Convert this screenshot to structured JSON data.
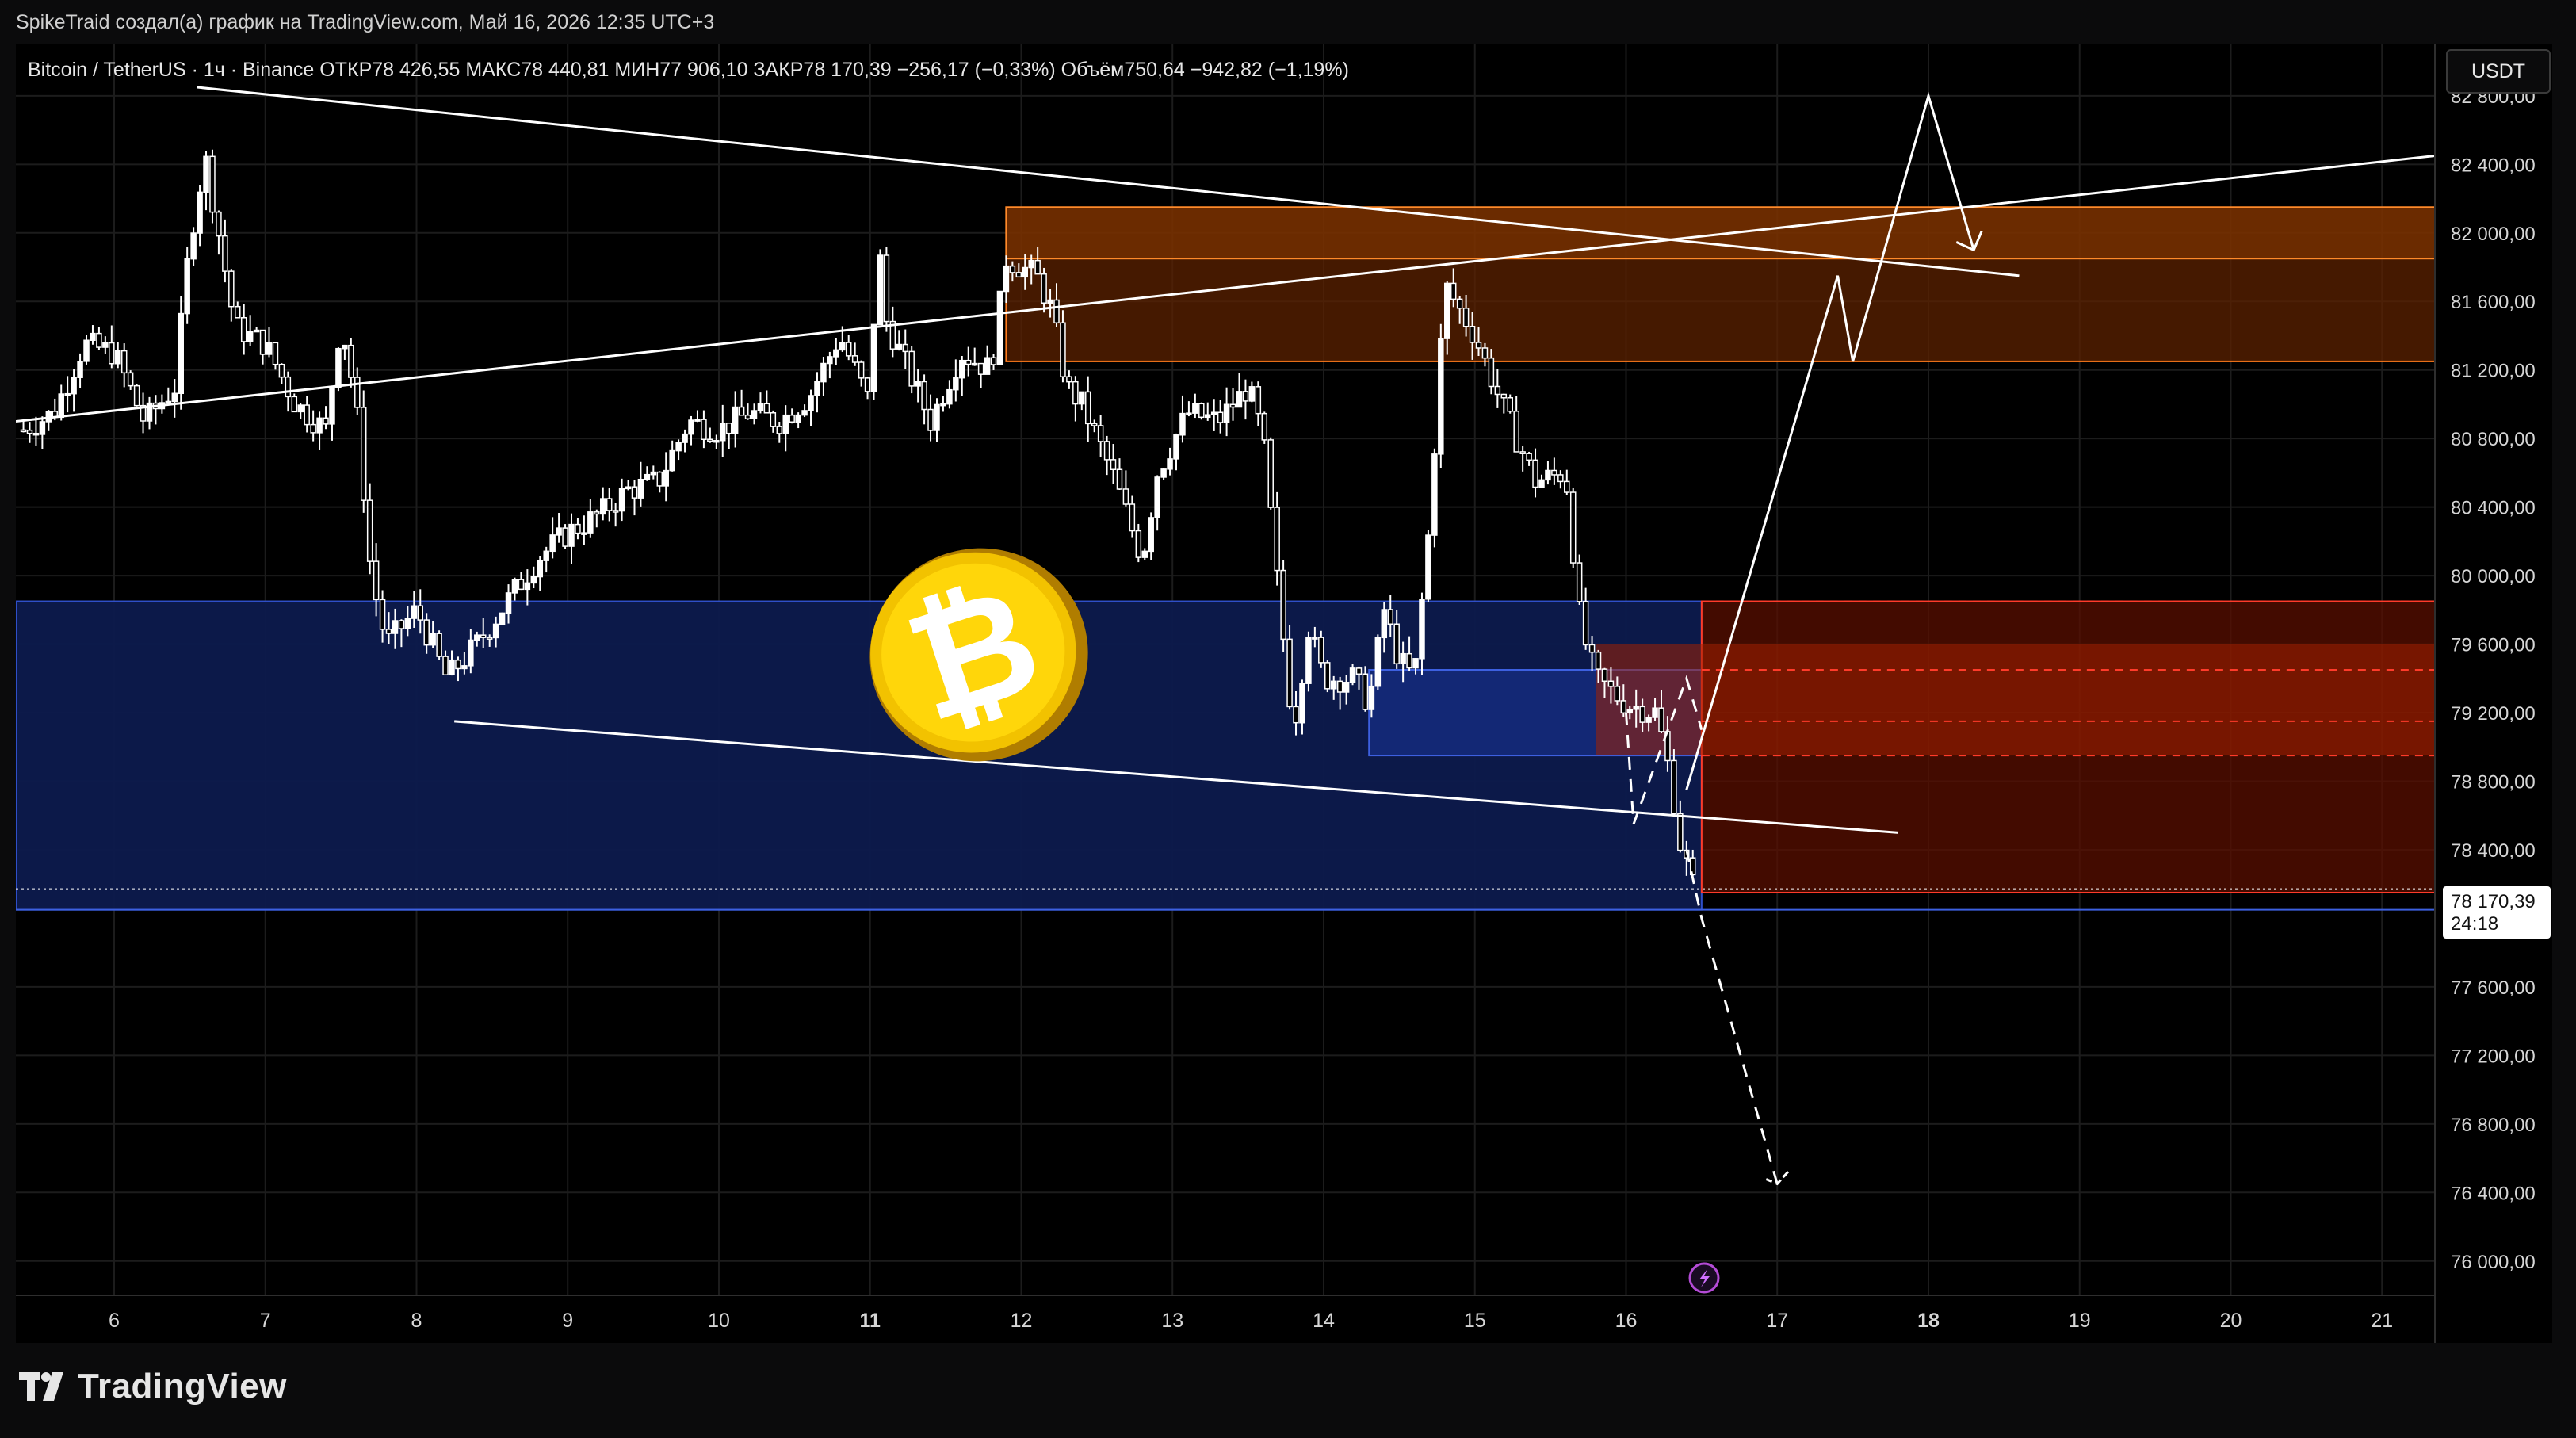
{
  "attribution": "SpikeTraid создал(а) график на TradingView.com, Май 16, 2026 12:35 UTC+3",
  "legend": "Bitcoin / TetherUS · 1ч · Binance  ОТКР78 426,55  МАКС78 440,81  МИН77 906,10  ЗАКР78 170,39  −256,17 (−0,33%)  Объём750,64  −942,82 (−1,19%)",
  "currency_button": "USDT",
  "price_badge": {
    "price": "78 170,39",
    "countdown": "24:18"
  },
  "brand": "TradingView",
  "colors": {
    "background": "#000000",
    "candle": "#ffffff",
    "demand_zone": "#0d1a4d",
    "supply_zone": "#5c2200",
    "resistance_zone": "#5a0f00",
    "trendline": "#ffffff"
  },
  "icons": {
    "lightning": "lightning-icon",
    "bitcoin": "bitcoin-coin-icon",
    "logo": "tradingview-logo-icon"
  },
  "chart_data": {
    "type": "candlestick",
    "symbol": "Bitcoin / TetherUS",
    "interval": "1ч",
    "exchange": "Binance",
    "ylim": [
      75800,
      83100
    ],
    "y_ticks": [
      "82 800,00",
      "82 400,00",
      "82 000,00",
      "81 600,00",
      "81 200,00",
      "80 800,00",
      "80 400,00",
      "80 000,00",
      "79 600,00",
      "79 200,00",
      "78 800,00",
      "78 400,00",
      "77 600,00",
      "77 200,00",
      "76 800,00",
      "76 400,00",
      "76 000,00"
    ],
    "y_tick_values": [
      82800,
      82400,
      82000,
      81600,
      81200,
      80800,
      80400,
      80000,
      79600,
      79200,
      78800,
      78400,
      77600,
      77200,
      76800,
      76400,
      76000
    ],
    "x_ticks": [
      "6",
      "7",
      "8",
      "9",
      "10",
      "11",
      "12",
      "13",
      "14",
      "15",
      "16",
      "17",
      "18",
      "19",
      "20",
      "21"
    ],
    "x_tick_values": [
      6,
      7,
      8,
      9,
      10,
      11,
      12,
      13,
      14,
      15,
      16,
      17,
      18,
      19,
      20,
      21
    ],
    "x_bold_ticks": [
      "11",
      "18"
    ],
    "xlim": [
      5.35,
      21.35
    ],
    "last_price": 78170.39,
    "close_path": [
      [
        5.4,
        80850
      ],
      [
        5.6,
        80950
      ],
      [
        5.8,
        81350
      ],
      [
        6.0,
        81300
      ],
      [
        6.2,
        80900
      ],
      [
        6.4,
        81100
      ],
      [
        6.5,
        81950
      ],
      [
        6.6,
        82450
      ],
      [
        6.8,
        81450
      ],
      [
        7.0,
        81350
      ],
      [
        7.2,
        81000
      ],
      [
        7.4,
        80850
      ],
      [
        7.5,
        81500
      ],
      [
        7.6,
        81000
      ],
      [
        7.7,
        80000
      ],
      [
        7.8,
        79600
      ],
      [
        8.0,
        79800
      ],
      [
        8.2,
        79400
      ],
      [
        8.4,
        79600
      ],
      [
        8.6,
        79850
      ],
      [
        8.8,
        80100
      ],
      [
        9.0,
        80250
      ],
      [
        9.2,
        80350
      ],
      [
        9.4,
        80500
      ],
      [
        9.6,
        80550
      ],
      [
        9.8,
        80900
      ],
      [
        10.0,
        80850
      ],
      [
        10.2,
        80950
      ],
      [
        10.4,
        80900
      ],
      [
        10.6,
        81050
      ],
      [
        10.8,
        81400
      ],
      [
        11.0,
        81000
      ],
      [
        11.05,
        82000
      ],
      [
        11.1,
        81500
      ],
      [
        11.2,
        81300
      ],
      [
        11.4,
        80900
      ],
      [
        11.6,
        81300
      ],
      [
        11.8,
        81200
      ],
      [
        11.9,
        81850
      ],
      [
        12.1,
        81750
      ],
      [
        12.2,
        81550
      ],
      [
        12.3,
        81100
      ],
      [
        12.4,
        81000
      ],
      [
        12.6,
        80600
      ],
      [
        12.8,
        80100
      ],
      [
        12.9,
        80600
      ],
      [
        13.1,
        80950
      ],
      [
        13.3,
        80900
      ],
      [
        13.5,
        81100
      ],
      [
        13.6,
        80800
      ],
      [
        13.7,
        79900
      ],
      [
        13.8,
        79100
      ],
      [
        13.9,
        79700
      ],
      [
        14.0,
        79400
      ],
      [
        14.2,
        79400
      ],
      [
        14.3,
        79250
      ],
      [
        14.4,
        79800
      ],
      [
        14.5,
        79500
      ],
      [
        14.6,
        79400
      ],
      [
        14.7,
        80300
      ],
      [
        14.8,
        81700
      ],
      [
        15.0,
        81400
      ],
      [
        15.2,
        80950
      ],
      [
        15.4,
        80550
      ],
      [
        15.6,
        80600
      ],
      [
        15.7,
        79700
      ],
      [
        15.8,
        79400
      ],
      [
        16.0,
        79250
      ],
      [
        16.2,
        79200
      ],
      [
        16.3,
        78800
      ],
      [
        16.35,
        78460
      ],
      [
        16.45,
        78170
      ]
    ],
    "zones": [
      {
        "name": "demand-zone-large",
        "x": [
          5.35,
          16.5
        ],
        "y": [
          78050,
          79850
        ]
      },
      {
        "name": "demand-zone-inner",
        "x": [
          14.3,
          16.5
        ],
        "y": [
          78950,
          79450
        ]
      },
      {
        "name": "supply-zone",
        "x": [
          11.9,
          21.35
        ],
        "y": [
          81250,
          82150
        ]
      },
      {
        "name": "resistance-zone",
        "x": [
          16.5,
          21.35
        ],
        "y": [
          78150,
          79850
        ]
      }
    ],
    "trendlines": [
      {
        "name": "upper-trendline",
        "points": [
          [
            6.55,
            82850
          ],
          [
            18.6,
            81750
          ]
        ]
      },
      {
        "name": "rising-trendline",
        "points": [
          [
            5.35,
            80900
          ],
          [
            21.35,
            82450
          ]
        ]
      },
      {
        "name": "lower-trendline",
        "points": [
          [
            8.25,
            79150
          ],
          [
            17.8,
            78500
          ]
        ]
      }
    ],
    "projections": [
      {
        "name": "bullish-projection",
        "dashed": false,
        "points": [
          [
            16.4,
            78750
          ],
          [
            17.4,
            81750
          ],
          [
            17.5,
            81250
          ],
          [
            18.0,
            82800
          ],
          [
            18.3,
            81900
          ]
        ]
      },
      {
        "name": "bearish-projection",
        "dashed": true,
        "points": [
          [
            16.4,
            78400
          ],
          [
            16.5,
            78000
          ],
          [
            17.0,
            76450
          ],
          [
            17.05,
            76500
          ]
        ]
      },
      {
        "name": "recent-wave-projection",
        "dashed": true,
        "points": [
          [
            16.0,
            79200
          ],
          [
            16.05,
            78550
          ],
          [
            16.4,
            79400
          ],
          [
            16.5,
            79100
          ]
        ]
      }
    ]
  }
}
